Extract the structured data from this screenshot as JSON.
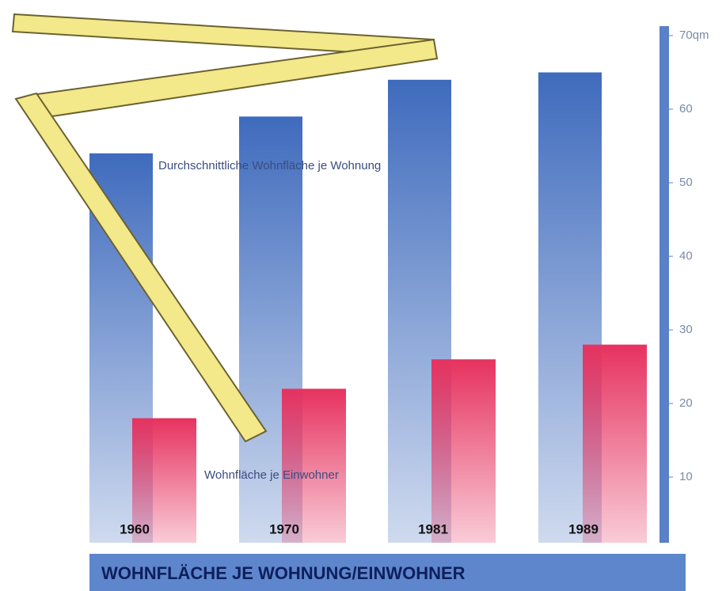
{
  "chart_data": {
    "type": "bar",
    "title": "WOHNFLÄCHE JE WOHNUNG/EINWOHNER",
    "categories": [
      "1960",
      "1970",
      "1981",
      "1989"
    ],
    "series": [
      {
        "name": "Durchschnittliche Wohnfläche je Wohnung",
        "color": "#3f6bbd",
        "values": [
          54,
          59,
          64,
          65
        ]
      },
      {
        "name": "Wohnfläche je Einwohner",
        "color": "#e6325f",
        "values": [
          18,
          22,
          26,
          28
        ]
      }
    ],
    "ylim": [
      0,
      70
    ],
    "yticks": [
      10,
      20,
      30,
      40,
      50,
      60,
      {
        "value": 70,
        "label": "70qm"
      }
    ]
  }
}
